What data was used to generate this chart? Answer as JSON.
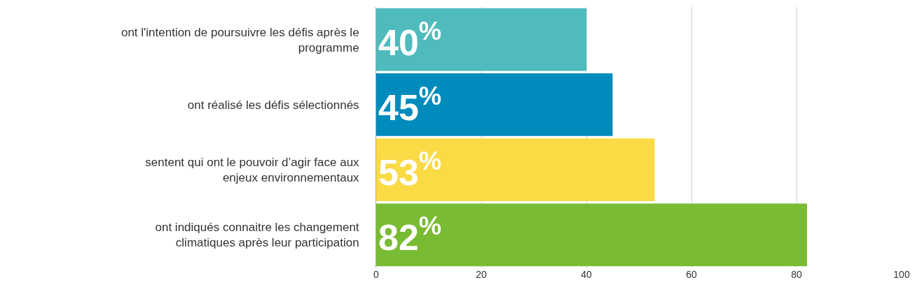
{
  "chart_data": {
    "type": "bar",
    "orientation": "horizontal",
    "categories": [
      "ont l'intention de poursuivre les défis après le programme",
      "ont réalisé les défis sélectionnés",
      "sentent qui ont le pouvoir d’agir face aux enjeux environnementaux",
      "ont indiqués connaitre les changement climatiques après leur participation"
    ],
    "values": [
      40,
      45,
      53,
      82
    ],
    "colors": [
      "#4fbbbd",
      "#008bbd",
      "#fadb45",
      "#79bb33"
    ],
    "value_labels": [
      "40$^{%}$",
      "45$^{%}$",
      "53$^{%}$",
      "82$^{%}$"
    ],
    "xlim": [
      0,
      100
    ],
    "xticks": [
      0,
      20,
      40,
      60,
      80,
      100
    ],
    "grid": "x"
  }
}
